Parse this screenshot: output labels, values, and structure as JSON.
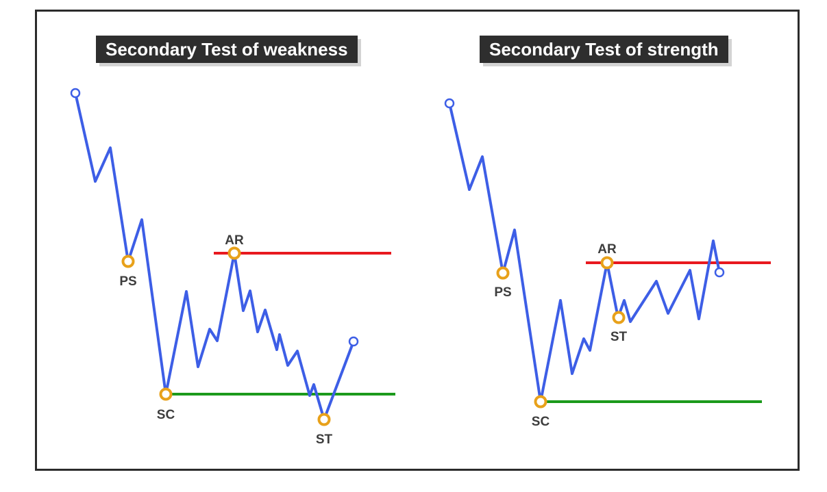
{
  "panels": [
    {
      "title": "Secondary Test of weakness",
      "labels": {
        "ps": "PS",
        "sc": "SC",
        "ar": "AR",
        "st": "ST"
      }
    },
    {
      "title": "Secondary Test of strength",
      "labels": {
        "ps": "PS",
        "sc": "SC",
        "ar": "AR",
        "st": "ST"
      }
    }
  ],
  "colors": {
    "price_line": "#3d5ee6",
    "resistance": "#e8191f",
    "support": "#1c9a1c",
    "event_marker": "#e8a11a",
    "endpoint_marker": "#3d5ee6"
  }
}
